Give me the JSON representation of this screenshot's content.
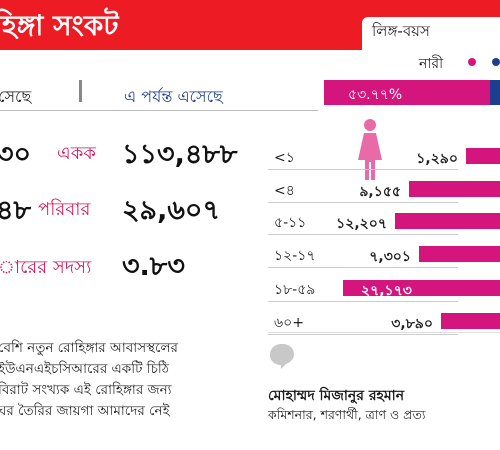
{
  "banner": {
    "title": "হিঙ্গা সংকট",
    "section_tag": "লিঙ্গ-বয়স"
  },
  "headers": {
    "left": "সেছে",
    "right": "এ পর্যন্ত এসেছে"
  },
  "stats": [
    {
      "left": "৩০",
      "label": "একক",
      "value": "১১৩,৪৮৮"
    },
    {
      "left": "৪৮",
      "label": "পরিবার",
      "value": "২৯,৬০৭"
    },
    {
      "left": "",
      "label": "ারের সদস্য",
      "value": "৩.৮৩"
    }
  ],
  "paragraph": [
    "বেশি নতুন রোহিঙ্গার আবাসস্থলের",
    "ইউএনএইচসিআরের একটি চিঠি",
    "বিরাট সংখ্যক এই রোহিঙ্গার জন্য",
    "ঘর তৈরির জায়গা আমাদের নেই"
  ],
  "quote_author": {
    "name": "মোহাম্মদ মিজানুর রহমান",
    "role": "কমিশনার, শরণার্থী, ত্রাণ ও প্রত্য"
  },
  "legend": {
    "female_label": "নারী",
    "female_color": "#d4157e",
    "male_color": "#1b3f8e"
  },
  "female_share": {
    "text": "৫৩.৭৭%",
    "percent": 53.77
  },
  "age_groups": [
    {
      "label": "<১",
      "value_text": "১,২৯০",
      "value": 1290
    },
    {
      "label": "<৪",
      "value_text": "৯,১৫৫",
      "value": 9155
    },
    {
      "label": "৫-১১",
      "value_text": "১২,২০৭",
      "value": 12207
    },
    {
      "label": "১২-১৭",
      "value_text": "৭,৩০১",
      "value": 7301
    },
    {
      "label": "১৮-৫৯",
      "value_text": "২৭,১৭৩",
      "value": 27173
    },
    {
      "label": "৬০+",
      "value_text": "৩,৮৯০",
      "value": 3890
    }
  ],
  "icons": {
    "person": "female-person-icon",
    "quote": "quote-icon"
  }
}
